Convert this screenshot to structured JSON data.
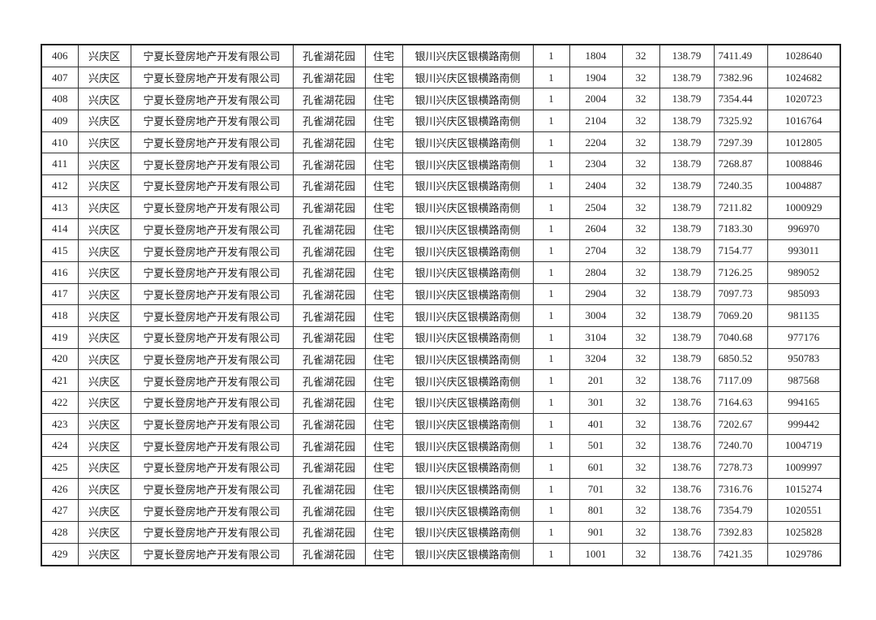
{
  "table": {
    "rows": [
      [
        "406",
        "兴庆区",
        "宁夏长登房地产开发有限公司",
        "孔雀湖花园",
        "住宅",
        "银川兴庆区银横路南侧",
        "1",
        "1804",
        "32",
        "138.79",
        "7411.49",
        "1028640"
      ],
      [
        "407",
        "兴庆区",
        "宁夏长登房地产开发有限公司",
        "孔雀湖花园",
        "住宅",
        "银川兴庆区银横路南侧",
        "1",
        "1904",
        "32",
        "138.79",
        "7382.96",
        "1024682"
      ],
      [
        "408",
        "兴庆区",
        "宁夏长登房地产开发有限公司",
        "孔雀湖花园",
        "住宅",
        "银川兴庆区银横路南侧",
        "1",
        "2004",
        "32",
        "138.79",
        "7354.44",
        "1020723"
      ],
      [
        "409",
        "兴庆区",
        "宁夏长登房地产开发有限公司",
        "孔雀湖花园",
        "住宅",
        "银川兴庆区银横路南侧",
        "1",
        "2104",
        "32",
        "138.79",
        "7325.92",
        "1016764"
      ],
      [
        "410",
        "兴庆区",
        "宁夏长登房地产开发有限公司",
        "孔雀湖花园",
        "住宅",
        "银川兴庆区银横路南侧",
        "1",
        "2204",
        "32",
        "138.79",
        "7297.39",
        "1012805"
      ],
      [
        "411",
        "兴庆区",
        "宁夏长登房地产开发有限公司",
        "孔雀湖花园",
        "住宅",
        "银川兴庆区银横路南侧",
        "1",
        "2304",
        "32",
        "138.79",
        "7268.87",
        "1008846"
      ],
      [
        "412",
        "兴庆区",
        "宁夏长登房地产开发有限公司",
        "孔雀湖花园",
        "住宅",
        "银川兴庆区银横路南侧",
        "1",
        "2404",
        "32",
        "138.79",
        "7240.35",
        "1004887"
      ],
      [
        "413",
        "兴庆区",
        "宁夏长登房地产开发有限公司",
        "孔雀湖花园",
        "住宅",
        "银川兴庆区银横路南侧",
        "1",
        "2504",
        "32",
        "138.79",
        "7211.82",
        "1000929"
      ],
      [
        "414",
        "兴庆区",
        "宁夏长登房地产开发有限公司",
        "孔雀湖花园",
        "住宅",
        "银川兴庆区银横路南侧",
        "1",
        "2604",
        "32",
        "138.79",
        "7183.30",
        "996970"
      ],
      [
        "415",
        "兴庆区",
        "宁夏长登房地产开发有限公司",
        "孔雀湖花园",
        "住宅",
        "银川兴庆区银横路南侧",
        "1",
        "2704",
        "32",
        "138.79",
        "7154.77",
        "993011"
      ],
      [
        "416",
        "兴庆区",
        "宁夏长登房地产开发有限公司",
        "孔雀湖花园",
        "住宅",
        "银川兴庆区银横路南侧",
        "1",
        "2804",
        "32",
        "138.79",
        "7126.25",
        "989052"
      ],
      [
        "417",
        "兴庆区",
        "宁夏长登房地产开发有限公司",
        "孔雀湖花园",
        "住宅",
        "银川兴庆区银横路南侧",
        "1",
        "2904",
        "32",
        "138.79",
        "7097.73",
        "985093"
      ],
      [
        "418",
        "兴庆区",
        "宁夏长登房地产开发有限公司",
        "孔雀湖花园",
        "住宅",
        "银川兴庆区银横路南侧",
        "1",
        "3004",
        "32",
        "138.79",
        "7069.20",
        "981135"
      ],
      [
        "419",
        "兴庆区",
        "宁夏长登房地产开发有限公司",
        "孔雀湖花园",
        "住宅",
        "银川兴庆区银横路南侧",
        "1",
        "3104",
        "32",
        "138.79",
        "7040.68",
        "977176"
      ],
      [
        "420",
        "兴庆区",
        "宁夏长登房地产开发有限公司",
        "孔雀湖花园",
        "住宅",
        "银川兴庆区银横路南侧",
        "1",
        "3204",
        "32",
        "138.79",
        "6850.52",
        "950783"
      ],
      [
        "421",
        "兴庆区",
        "宁夏长登房地产开发有限公司",
        "孔雀湖花园",
        "住宅",
        "银川兴庆区银横路南侧",
        "1",
        "201",
        "32",
        "138.76",
        "7117.09",
        "987568"
      ],
      [
        "422",
        "兴庆区",
        "宁夏长登房地产开发有限公司",
        "孔雀湖花园",
        "住宅",
        "银川兴庆区银横路南侧",
        "1",
        "301",
        "32",
        "138.76",
        "7164.63",
        "994165"
      ],
      [
        "423",
        "兴庆区",
        "宁夏长登房地产开发有限公司",
        "孔雀湖花园",
        "住宅",
        "银川兴庆区银横路南侧",
        "1",
        "401",
        "32",
        "138.76",
        "7202.67",
        "999442"
      ],
      [
        "424",
        "兴庆区",
        "宁夏长登房地产开发有限公司",
        "孔雀湖花园",
        "住宅",
        "银川兴庆区银横路南侧",
        "1",
        "501",
        "32",
        "138.76",
        "7240.70",
        "1004719"
      ],
      [
        "425",
        "兴庆区",
        "宁夏长登房地产开发有限公司",
        "孔雀湖花园",
        "住宅",
        "银川兴庆区银横路南侧",
        "1",
        "601",
        "32",
        "138.76",
        "7278.73",
        "1009997"
      ],
      [
        "426",
        "兴庆区",
        "宁夏长登房地产开发有限公司",
        "孔雀湖花园",
        "住宅",
        "银川兴庆区银横路南侧",
        "1",
        "701",
        "32",
        "138.76",
        "7316.76",
        "1015274"
      ],
      [
        "427",
        "兴庆区",
        "宁夏长登房地产开发有限公司",
        "孔雀湖花园",
        "住宅",
        "银川兴庆区银横路南侧",
        "1",
        "801",
        "32",
        "138.76",
        "7354.79",
        "1020551"
      ],
      [
        "428",
        "兴庆区",
        "宁夏长登房地产开发有限公司",
        "孔雀湖花园",
        "住宅",
        "银川兴庆区银横路南侧",
        "1",
        "901",
        "32",
        "138.76",
        "7392.83",
        "1025828"
      ],
      [
        "429",
        "兴庆区",
        "宁夏长登房地产开发有限公司",
        "孔雀湖花园",
        "住宅",
        "银川兴庆区银横路南侧",
        "1",
        "1001",
        "32",
        "138.76",
        "7421.35",
        "1029786"
      ]
    ]
  }
}
